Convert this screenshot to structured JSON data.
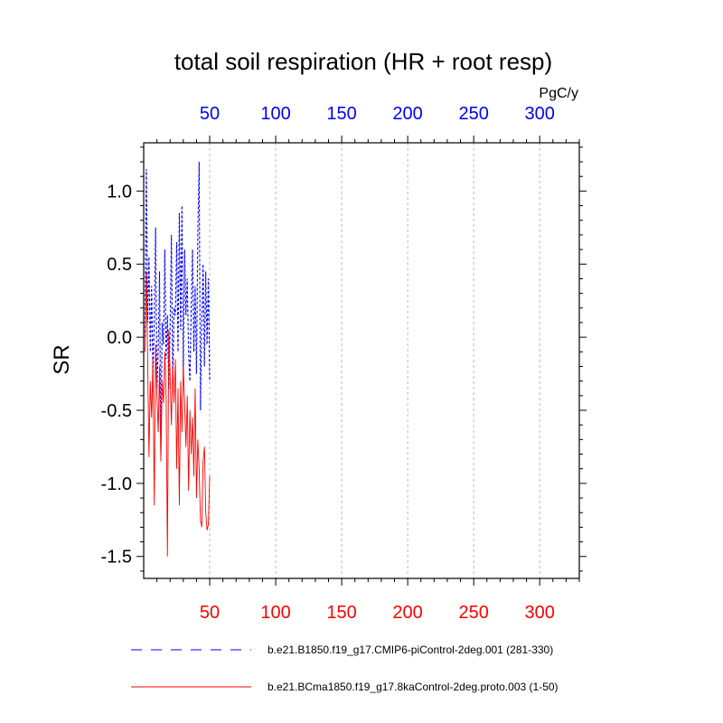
{
  "chart_data": {
    "type": "line",
    "title": "total soil respiration (HR + root resp)",
    "units_label": "PgC/y",
    "ylabel": "SR",
    "xlim": [
      0,
      330
    ],
    "ylim": [
      -1.65,
      1.33
    ],
    "x_ticks": [
      50,
      100,
      150,
      200,
      250,
      300
    ],
    "x_tick_labels": [
      "50",
      "100",
      "150",
      "200",
      "250",
      "300"
    ],
    "top_axis_color": "#0000ff",
    "bottom_axis_color": "#ff0000",
    "y_ticks": [
      1.0,
      0.5,
      0.0,
      -0.5,
      -1.0,
      -1.5
    ],
    "y_tick_labels": [
      "1.0",
      "0.5",
      "0.0",
      "-0.5",
      "-1.0",
      "-1.5"
    ],
    "grid": "vertical dashed",
    "series": [
      {
        "name": "b.e21.B1850.f19_g17.CMIP6-piControl-2deg.001 (281-330)",
        "color": "#0000ff",
        "style": "dashed",
        "x": [
          1,
          2,
          3,
          4,
          5,
          6,
          7,
          8,
          9,
          10,
          11,
          12,
          13,
          14,
          15,
          16,
          17,
          18,
          19,
          20,
          21,
          22,
          23,
          24,
          25,
          26,
          27,
          28,
          29,
          30,
          31,
          32,
          33,
          34,
          35,
          36,
          37,
          38,
          39,
          40,
          41,
          42,
          43,
          44,
          45,
          46,
          47,
          48,
          49,
          50
        ],
        "values": [
          0.0,
          1.15,
          0.1,
          0.55,
          -0.1,
          0.35,
          -0.25,
          0.1,
          0.75,
          -0.35,
          -0.1,
          0.45,
          -0.8,
          0.1,
          -0.05,
          0.6,
          -0.15,
          0.15,
          -0.35,
          0.05,
          0.7,
          -0.3,
          0.2,
          0.15,
          0.65,
          -0.1,
          0.85,
          0.05,
          0.9,
          -0.25,
          0.6,
          0.15,
          0.4,
          -0.1,
          -0.3,
          0.2,
          0.6,
          -0.1,
          0.35,
          -0.25,
          0.7,
          1.2,
          -0.5,
          0.1,
          0.5,
          -0.2,
          0.45,
          -0.05,
          0.4,
          -0.3
        ]
      },
      {
        "name": "b.e21.BCma1850.f19_g17.8kaControl-2deg.proto.003 (1-50)",
        "color": "#ff0000",
        "style": "solid",
        "x": [
          1,
          2,
          3,
          4,
          5,
          6,
          7,
          8,
          9,
          10,
          11,
          12,
          13,
          14,
          15,
          16,
          17,
          18,
          19,
          20,
          21,
          22,
          23,
          24,
          25,
          26,
          27,
          28,
          29,
          30,
          31,
          32,
          33,
          34,
          35,
          36,
          37,
          38,
          39,
          40,
          41,
          42,
          43,
          44,
          45,
          46,
          47,
          48,
          49,
          50
        ],
        "values": [
          -0.1,
          0.45,
          -0.15,
          -0.82,
          -0.3,
          -0.55,
          -0.15,
          -1.15,
          -0.05,
          -0.4,
          -0.65,
          -0.2,
          -0.85,
          -0.3,
          -0.45,
          -0.1,
          -0.4,
          -1.5,
          0.05,
          -0.25,
          -0.6,
          -0.2,
          -0.45,
          -0.15,
          -0.9,
          -0.35,
          -1.15,
          -0.3,
          -0.65,
          -0.2,
          -0.45,
          -0.75,
          -0.4,
          -1.05,
          -0.5,
          -0.8,
          -0.55,
          -0.95,
          -0.35,
          -1.1,
          -0.7,
          -0.9,
          -1.25,
          -1.3,
          -0.85,
          -0.75,
          -1.2,
          -1.32,
          -1.28,
          -0.95
        ]
      }
    ]
  }
}
